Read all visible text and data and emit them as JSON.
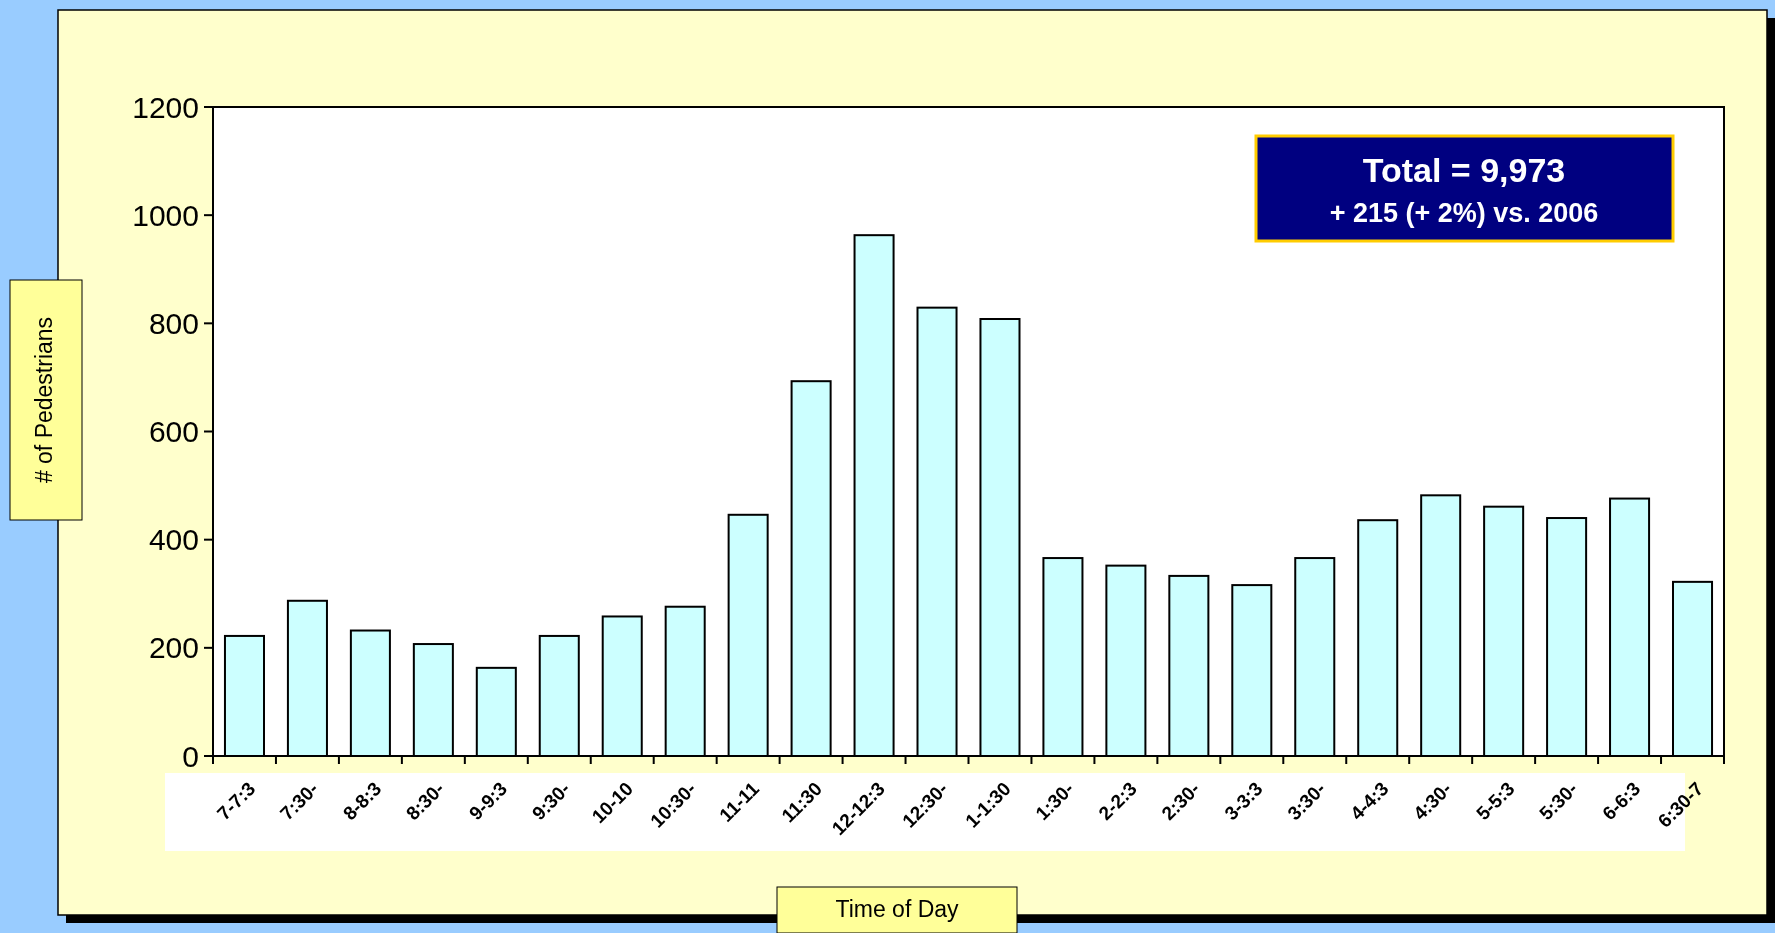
{
  "chart_data": {
    "type": "bar",
    "xlabel": "Time of Day",
    "ylabel": "# of Pedestrians",
    "categories": [
      "7-7:3",
      "7:30-",
      "8-8:3",
      "8:30-",
      "9-9:3",
      "9:30-",
      "10-10",
      "10:30-",
      "11-11",
      "11:30",
      "12-12:3",
      "12:30-",
      "1-1:30",
      "1:30-",
      "2-2:3",
      "2:30-",
      "3-3:3",
      "3:30-",
      "4-4:3",
      "4:30-",
      "5-5:3",
      "5:30-",
      "6-6:3",
      "6:30-7"
    ],
    "values": [
      222,
      287,
      232,
      207,
      163,
      222,
      258,
      276,
      446,
      693,
      963,
      829,
      808,
      366,
      352,
      333,
      316,
      366,
      436,
      482,
      461,
      440,
      476,
      322
    ],
    "color": "#ccffff",
    "ylim": [
      0,
      1200
    ],
    "yticks": [
      0,
      200,
      400,
      600,
      800,
      1000,
      1200
    ],
    "grid": false,
    "annotations": [
      "Total = 9,973",
      "+ 215 (+ 2%) vs. 2006"
    ]
  }
}
